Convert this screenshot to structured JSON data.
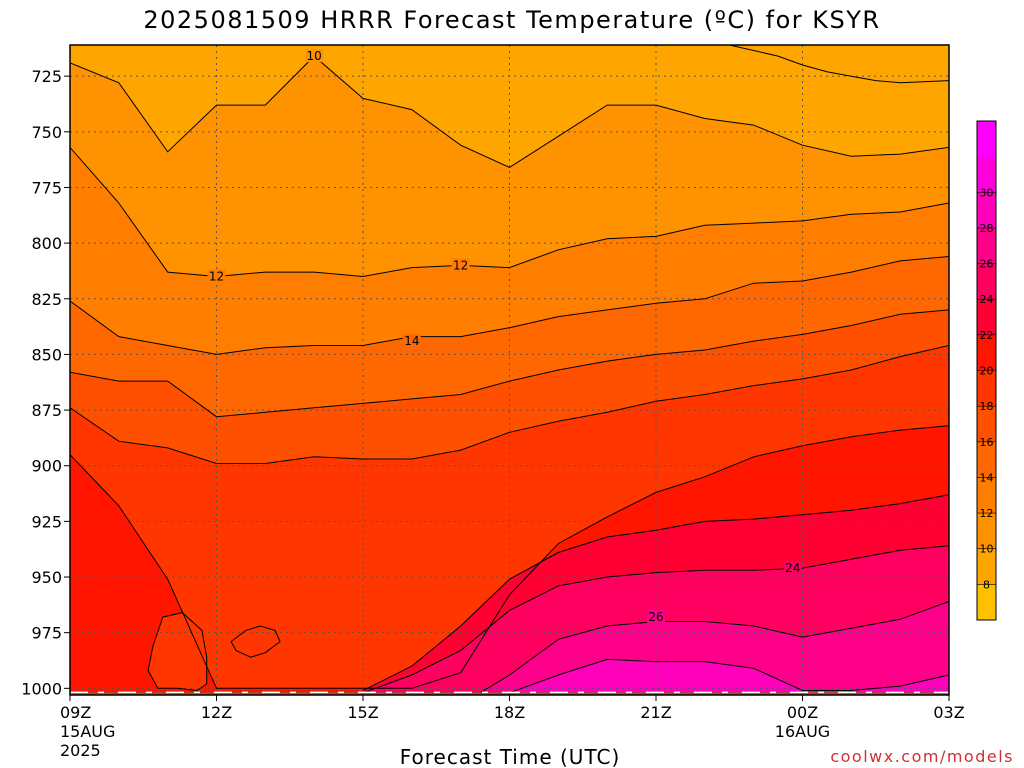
{
  "chart_data": {
    "type": "heatmap",
    "title": "2025081509 HRRR Forecast Temperature (ºC) for KSYR",
    "xlabel": "Forecast Time (UTC)",
    "ylabel": "",
    "credit": "coolwx.com/models",
    "y_ticks": [
      "725",
      "750",
      "775",
      "800",
      "825",
      "850",
      "875",
      "900",
      "925",
      "950",
      "975",
      "1000"
    ],
    "y_values": [
      725,
      750,
      775,
      800,
      825,
      850,
      875,
      900,
      925,
      950,
      975,
      1000
    ],
    "ylim": [
      1003,
      711
    ],
    "x_ticks": [
      {
        "line1": "09Z",
        "line2": "15AUG",
        "line3": "2025"
      },
      {
        "line1": "12Z",
        "line2": "",
        "line3": ""
      },
      {
        "line1": "15Z",
        "line2": "",
        "line3": ""
      },
      {
        "line1": "18Z",
        "line2": "",
        "line3": ""
      },
      {
        "line1": "21Z",
        "line2": "",
        "line3": ""
      },
      {
        "line1": "00Z",
        "line2": "16AUG",
        "line3": ""
      },
      {
        "line1": "03Z",
        "line2": "",
        "line3": ""
      }
    ],
    "x_hours": [
      0,
      3,
      6,
      9,
      12,
      15,
      18
    ],
    "grid": true,
    "colorbar": {
      "labels": [
        "8",
        "10",
        "12",
        "14",
        "16",
        "18",
        "20",
        "22",
        "24",
        "26",
        "28",
        "30"
      ],
      "colors": [
        "#ffc000",
        "#ffa500",
        "#ff9200",
        "#ff7e00",
        "#ff6800",
        "#ff5000",
        "#ff3600",
        "#ff1500",
        "#ff0033",
        "#ff0060",
        "#ff008a",
        "#ff00bb",
        "#ff00dd",
        "#ff00ff"
      ]
    },
    "contour_labels": [
      {
        "text": "10",
        "hour": 5.0,
        "p": 716
      },
      {
        "text": "12",
        "hour": 3.0,
        "p": 815
      },
      {
        "text": "12",
        "hour": 8.0,
        "p": 810
      },
      {
        "text": "14",
        "hour": 7.0,
        "p": 844
      },
      {
        "text": "24",
        "hour": 14.8,
        "p": 946
      },
      {
        "text": "26",
        "hour": 12.0,
        "p": 968
      }
    ],
    "contours": [
      {
        "level": 8,
        "hours": [
          13.5,
          14.5,
          15,
          15.5,
          16,
          16.5,
          17,
          18
        ],
        "p": [
          711,
          716,
          720,
          723,
          725,
          727,
          728,
          727
        ]
      },
      {
        "level": 10,
        "hours": [
          0,
          1,
          2,
          3,
          4,
          5,
          6,
          7,
          8,
          9,
          10,
          11,
          12,
          13,
          14,
          15,
          16,
          17,
          18
        ],
        "p": [
          719,
          728,
          759,
          738,
          738,
          716,
          735,
          740,
          756,
          766,
          752,
          738,
          738,
          744,
          747,
          756,
          761,
          760,
          757
        ]
      },
      {
        "level": 12,
        "hours": [
          0,
          1,
          2,
          3,
          4,
          5,
          6,
          7,
          8,
          9,
          10,
          11,
          12,
          13,
          14,
          15,
          16,
          17,
          18
        ],
        "p": [
          757,
          782,
          813,
          815,
          813,
          813,
          815,
          811,
          810,
          811,
          803,
          798,
          797,
          792,
          791,
          790,
          787,
          786,
          782
        ]
      },
      {
        "level": 14,
        "hours": [
          0,
          1,
          2,
          3,
          4,
          5,
          6,
          7,
          8,
          9,
          10,
          11,
          12,
          13,
          14,
          15,
          16,
          17,
          18
        ],
        "p": [
          826,
          842,
          846,
          850,
          847,
          846,
          846,
          842,
          842,
          838,
          833,
          830,
          827,
          825,
          818,
          817,
          813,
          808,
          806
        ]
      },
      {
        "level": 16,
        "hours": [
          0,
          1,
          2,
          3,
          4,
          5,
          6,
          7,
          8,
          9,
          10,
          11,
          12,
          13,
          14,
          15,
          16,
          17,
          18
        ],
        "p": [
          858,
          862,
          862,
          878,
          876,
          874,
          872,
          870,
          868,
          862,
          857,
          853,
          850,
          848,
          844,
          841,
          837,
          832,
          830
        ]
      },
      {
        "level": 18,
        "hours": [
          0,
          1,
          2,
          3,
          4,
          5,
          6,
          7,
          8,
          9,
          10,
          11,
          12,
          13,
          14,
          15,
          16,
          17,
          18
        ],
        "p": [
          874,
          889,
          892,
          899,
          899,
          896,
          897,
          897,
          893,
          885,
          880,
          876,
          871,
          868,
          864,
          861,
          857,
          851,
          846
        ]
      },
      {
        "level": 20,
        "hours": [
          0,
          1,
          2,
          3,
          4,
          5,
          6,
          7,
          8,
          9,
          10,
          11,
          12,
          13,
          14,
          15,
          16,
          17,
          18
        ],
        "p": [
          895,
          918,
          951,
          1000,
          1000,
          1000,
          1000,
          1000,
          993,
          958,
          935,
          923,
          912,
          905,
          896,
          891,
          887,
          884,
          882
        ]
      },
      {
        "level": 22,
        "hours": [
          6,
          7,
          8,
          9,
          10,
          11,
          12,
          13,
          14,
          15,
          16,
          17,
          18
        ],
        "p": [
          1001,
          990,
          972,
          951,
          939,
          932,
          929,
          925,
          924,
          922,
          920,
          917,
          913
        ]
      },
      {
        "level": 24,
        "hours": [
          6,
          7,
          8,
          9,
          10,
          11,
          12,
          13,
          14,
          15,
          16,
          17,
          18
        ],
        "p": [
          1002,
          994,
          983,
          965,
          954,
          950,
          948,
          947,
          947,
          946,
          942,
          938,
          936
        ]
      },
      {
        "level": 26,
        "hours": [
          8.4,
          9,
          10,
          11,
          12,
          13,
          14,
          15,
          16,
          17,
          18
        ],
        "p": [
          1002,
          994,
          978,
          972,
          970,
          970,
          972,
          977,
          973,
          969,
          961
        ]
      },
      {
        "level": 28,
        "hours": [
          9,
          10,
          11,
          12,
          13,
          14,
          15,
          16,
          17,
          18
        ],
        "p": [
          1002,
          994,
          987,
          988,
          988,
          991,
          1001,
          1001,
          999,
          994
        ]
      }
    ],
    "isolated_contours": [
      {
        "level": 20,
        "hours": [
          1.8,
          2.2,
          2.6,
          2.8,
          2.8,
          2.7,
          2.3,
          1.9,
          1.7,
          1.6,
          1.8
        ],
        "p": [
          1000,
          1000,
          1001,
          998,
          986,
          974,
          966,
          968,
          981,
          992,
          1000
        ]
      },
      {
        "level": 20,
        "hours": [
          3.3,
          3.6,
          3.9,
          4.2,
          4.3,
          4.0,
          3.7,
          3.4,
          3.3
        ],
        "p": [
          979,
          974,
          972,
          974,
          979,
          984,
          986,
          983,
          979
        ]
      }
    ],
    "ground_color": "#a0522d"
  }
}
